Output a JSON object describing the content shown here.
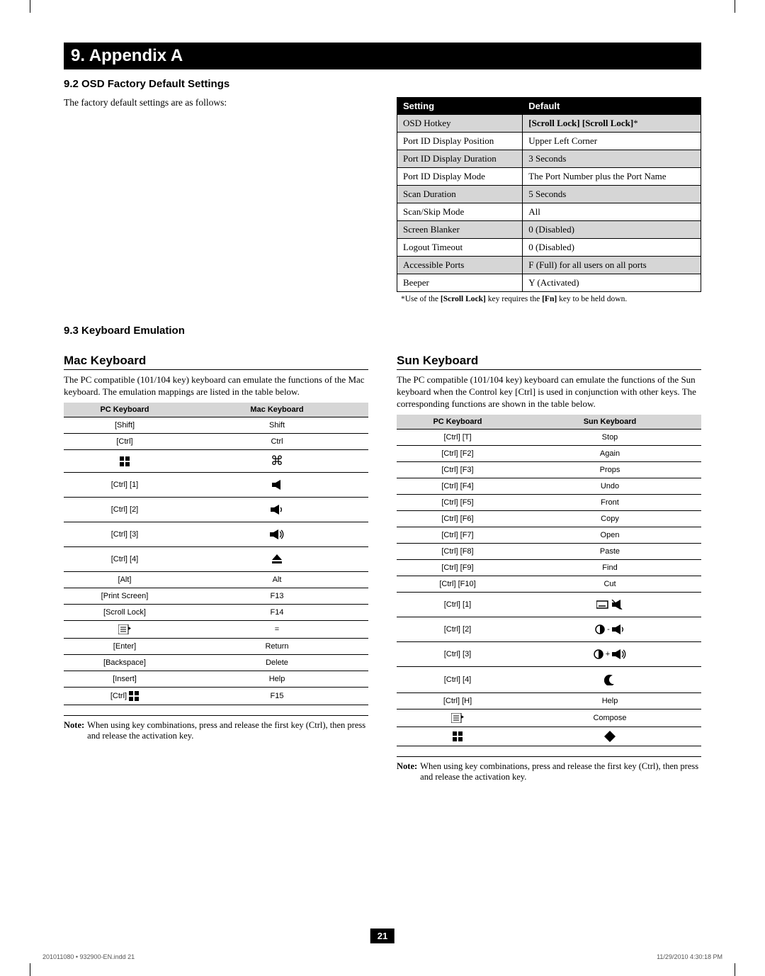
{
  "banner_title": "9. Appendix A",
  "section92_title": "9.2 OSD Factory Default Settings",
  "section92_intro": "The factory default settings are as follows:",
  "settings_table": {
    "header_setting": "Setting",
    "header_default": "Default",
    "rows": [
      {
        "setting": "OSD Hotkey",
        "default": "[Scroll Lock] [Scroll Lock]*",
        "shade": true
      },
      {
        "setting": "Port ID Display Position",
        "default": "Upper Left Corner",
        "shade": false
      },
      {
        "setting": "Port ID Display Duration",
        "default": "3 Seconds",
        "shade": true
      },
      {
        "setting": "Port ID Display Mode",
        "default": "The Port Number plus the Port Name",
        "shade": false
      },
      {
        "setting": "Scan Duration",
        "default": "5 Seconds",
        "shade": true
      },
      {
        "setting": "Scan/Skip Mode",
        "default": "All",
        "shade": false
      },
      {
        "setting": "Screen Blanker",
        "default": "0 (Disabled)",
        "shade": true
      },
      {
        "setting": "Logout Timeout",
        "default": "0 (Disabled)",
        "shade": false
      },
      {
        "setting": "Accessible Ports",
        "default": "F (Full) for all users on all ports",
        "shade": true
      },
      {
        "setting": "Beeper",
        "default": "Y (Activated)",
        "shade": false
      }
    ],
    "footnote": "*Use of the [Scroll Lock] key requires the [Fn] key to be held down."
  },
  "section93_title": "9.3 Keyboard Emulation",
  "mac": {
    "heading": "Mac Keyboard",
    "intro": "The PC compatible (101/104 key) keyboard can emulate the functions of the Mac keyboard. The emulation mappings are listed in the table below.",
    "header_pc": "PC Keyboard",
    "header_mac": "Mac Keyboard",
    "rows": [
      {
        "pc": "[Shift]",
        "mac": "Shift",
        "icon": null
      },
      {
        "pc": "[Ctrl]",
        "mac": "Ctrl",
        "icon": null
      },
      {
        "pc": "",
        "mac": "",
        "icon": "win-cmd"
      },
      {
        "pc": "[Ctrl] [1]",
        "mac": "",
        "icon": "mute",
        "tall": true
      },
      {
        "pc": "[Ctrl] [2]",
        "mac": "",
        "icon": "vol-down",
        "tall": true
      },
      {
        "pc": "[Ctrl] [3]",
        "mac": "",
        "icon": "vol-up",
        "tall": true
      },
      {
        "pc": "[Ctrl] [4]",
        "mac": "",
        "icon": "eject",
        "tall": true
      },
      {
        "pc": "[Alt]",
        "mac": "Alt",
        "icon": null
      },
      {
        "pc": "[Print Screen]",
        "mac": "F13",
        "icon": null
      },
      {
        "pc": "[Scroll Lock]",
        "mac": "F14",
        "icon": null
      },
      {
        "pc": "",
        "mac": "=",
        "icon": "menu-left"
      },
      {
        "pc": "[Enter]",
        "mac": "Return",
        "icon": null
      },
      {
        "pc": "[Backspace]",
        "mac": "Delete",
        "icon": null
      },
      {
        "pc": "[Insert]",
        "mac": "Help",
        "icon": null
      },
      {
        "pc": "[Ctrl] ",
        "mac": "F15",
        "icon": "win-suffix"
      }
    ],
    "note_label": "Note:",
    "note_text": "When using key combinations, press and release the first key (Ctrl), then press and release the activation key."
  },
  "sun": {
    "heading": "Sun Keyboard",
    "intro": "The PC compatible (101/104 key) keyboard can emulate the functions of the Sun keyboard when the Control key [Ctrl] is used in conjunction with other keys. The corresponding functions are shown in the table below.",
    "header_pc": "PC Keyboard",
    "header_sun": "Sun Keyboard",
    "rows": [
      {
        "pc": "[Ctrl] [T]",
        "sun": "Stop",
        "icon": null
      },
      {
        "pc": "[Ctrl] [F2]",
        "sun": "Again",
        "icon": null
      },
      {
        "pc": "[Ctrl] [F3]",
        "sun": "Props",
        "icon": null
      },
      {
        "pc": "[Ctrl] [F4]",
        "sun": "Undo",
        "icon": null
      },
      {
        "pc": "[Ctrl] [F5]",
        "sun": "Front",
        "icon": null
      },
      {
        "pc": "[Ctrl] [F6]",
        "sun": "Copy",
        "icon": null
      },
      {
        "pc": "[Ctrl] [F7]",
        "sun": "Open",
        "icon": null
      },
      {
        "pc": "[Ctrl] [F8]",
        "sun": "Paste",
        "icon": null
      },
      {
        "pc": "[Ctrl] [F9]",
        "sun": "Find",
        "icon": null
      },
      {
        "pc": "[Ctrl] [F10]",
        "sun": "Cut",
        "icon": null
      },
      {
        "pc": "[Ctrl] [1]",
        "sun": "",
        "icon": "kb-mute",
        "tall": true
      },
      {
        "pc": "[Ctrl] [2]",
        "sun": "",
        "icon": "circ-voldown",
        "tall": true
      },
      {
        "pc": "[Ctrl] [3]",
        "sun": "",
        "icon": "circ-volup",
        "tall": true
      },
      {
        "pc": "[Ctrl] [4]",
        "sun": "",
        "icon": "moon",
        "tall": true
      },
      {
        "pc": "[Ctrl] [H]",
        "sun": "Help",
        "icon": null
      },
      {
        "pc": "",
        "sun": "Compose",
        "icon": "menu-left-pc"
      },
      {
        "pc": "",
        "sun": "",
        "icon": "win-diamond"
      }
    ],
    "note_label": "Note:",
    "note_text": "When using key combinations, press and release the first key (Ctrl), then press and release the activation key."
  },
  "page_number": "21",
  "footer_left": "201011080 • 932900-EN.indd   21",
  "footer_right": "11/29/2010   4:30:18 PM"
}
